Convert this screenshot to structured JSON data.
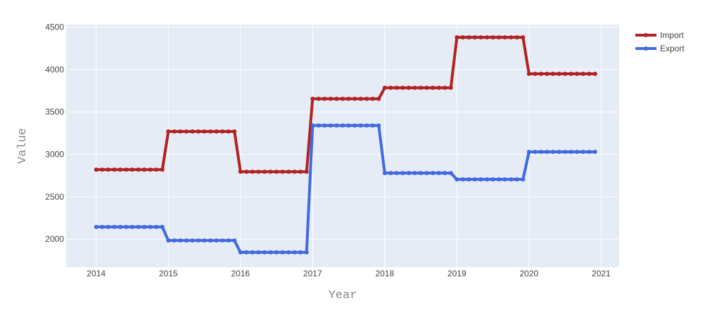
{
  "chart_data": {
    "type": "line",
    "xlabel": "Year",
    "ylabel": "Value",
    "x_ticks": [
      "2014",
      "2015",
      "2016",
      "2017",
      "2018",
      "2019",
      "2020",
      "2021"
    ],
    "y_ticks": [
      "2000",
      "2500",
      "3000",
      "3500",
      "4000",
      "4500"
    ],
    "xlim": [
      "2013-08-01",
      "2021-04-01"
    ],
    "ylim": [
      1670,
      4530
    ],
    "x": [
      "2014-01",
      "2014-02",
      "2014-03",
      "2014-04",
      "2014-05",
      "2014-06",
      "2014-07",
      "2014-08",
      "2014-09",
      "2014-10",
      "2014-11",
      "2014-12",
      "2015-01",
      "2015-02",
      "2015-03",
      "2015-04",
      "2015-05",
      "2015-06",
      "2015-07",
      "2015-08",
      "2015-09",
      "2015-10",
      "2015-11",
      "2015-12",
      "2016-01",
      "2016-02",
      "2016-03",
      "2016-04",
      "2016-05",
      "2016-06",
      "2016-07",
      "2016-08",
      "2016-09",
      "2016-10",
      "2016-11",
      "2016-12",
      "2017-01",
      "2017-02",
      "2017-03",
      "2017-04",
      "2017-05",
      "2017-06",
      "2017-07",
      "2017-08",
      "2017-09",
      "2017-10",
      "2017-11",
      "2017-12",
      "2018-01",
      "2018-02",
      "2018-03",
      "2018-04",
      "2018-05",
      "2018-06",
      "2018-07",
      "2018-08",
      "2018-09",
      "2018-10",
      "2018-11",
      "2018-12",
      "2019-01",
      "2019-02",
      "2019-03",
      "2019-04",
      "2019-05",
      "2019-06",
      "2019-07",
      "2019-08",
      "2019-09",
      "2019-10",
      "2019-11",
      "2019-12",
      "2020-01",
      "2020-02",
      "2020-03",
      "2020-04",
      "2020-05",
      "2020-06",
      "2020-07",
      "2020-08",
      "2020-09",
      "2020-10",
      "2020-11",
      "2020-12"
    ],
    "series": [
      {
        "name": "Import",
        "color": "#b22222",
        "values": [
          2820,
          2820,
          2820,
          2820,
          2820,
          2820,
          2820,
          2820,
          2820,
          2820,
          2820,
          2820,
          3270,
          3270,
          3270,
          3270,
          3270,
          3270,
          3270,
          3270,
          3270,
          3270,
          3270,
          3270,
          2795,
          2795,
          2795,
          2795,
          2795,
          2795,
          2795,
          2795,
          2795,
          2795,
          2795,
          2795,
          3655,
          3655,
          3655,
          3655,
          3655,
          3655,
          3655,
          3655,
          3655,
          3655,
          3655,
          3655,
          3785,
          3785,
          3785,
          3785,
          3785,
          3785,
          3785,
          3785,
          3785,
          3785,
          3785,
          3785,
          4380,
          4380,
          4380,
          4380,
          4380,
          4380,
          4380,
          4380,
          4380,
          4380,
          4380,
          4380,
          3950,
          3950,
          3950,
          3950,
          3950,
          3950,
          3950,
          3950,
          3950,
          3950,
          3950,
          3950
        ]
      },
      {
        "name": "Export",
        "color": "#4169e1",
        "values": [
          2145,
          2145,
          2145,
          2145,
          2145,
          2145,
          2145,
          2145,
          2145,
          2145,
          2145,
          2145,
          1985,
          1985,
          1985,
          1985,
          1985,
          1985,
          1985,
          1985,
          1985,
          1985,
          1985,
          1985,
          1845,
          1845,
          1845,
          1845,
          1845,
          1845,
          1845,
          1845,
          1845,
          1845,
          1845,
          1845,
          3340,
          3340,
          3340,
          3340,
          3340,
          3340,
          3340,
          3340,
          3340,
          3340,
          3340,
          3340,
          2780,
          2780,
          2780,
          2780,
          2780,
          2780,
          2780,
          2780,
          2780,
          2780,
          2780,
          2780,
          2705,
          2705,
          2705,
          2705,
          2705,
          2705,
          2705,
          2705,
          2705,
          2705,
          2705,
          2705,
          3030,
          3030,
          3030,
          3030,
          3030,
          3030,
          3030,
          3030,
          3030,
          3030,
          3030,
          3030
        ]
      }
    ],
    "grid": true,
    "legend_position": "top-right",
    "plot_background": "#e5ecf6"
  }
}
